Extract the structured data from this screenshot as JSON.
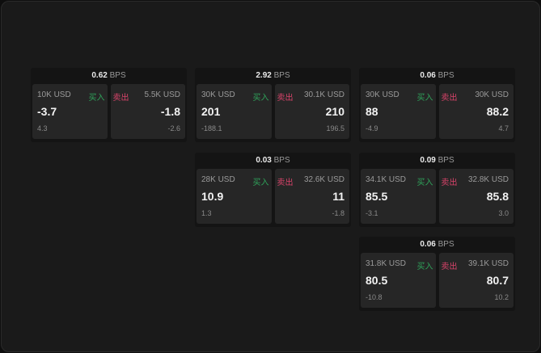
{
  "unit": "BPS",
  "buy_label": "买入",
  "sell_label": "卖出",
  "colors": {
    "buy": "#2fa35a",
    "sell": "#d9436a"
  },
  "cards": [
    {
      "spread": "0.62",
      "bid": {
        "size": "10K USD",
        "price": "-3.7",
        "change": "4.3"
      },
      "ask": {
        "size": "5.5K USD",
        "price": "-1.8",
        "change": "-2.6"
      }
    },
    {
      "spread": "2.92",
      "bid": {
        "size": "30K USD",
        "price": "201",
        "change": "-188.1"
      },
      "ask": {
        "size": "30.1K USD",
        "price": "210",
        "change": "196.5"
      }
    },
    {
      "spread": "0.06",
      "bid": {
        "size": "30K USD",
        "price": "88",
        "change": "-4.9"
      },
      "ask": {
        "size": "30K USD",
        "price": "88.2",
        "change": "4.7"
      }
    },
    {
      "spread": "0.03",
      "bid": {
        "size": "28K USD",
        "price": "10.9",
        "change": "1.3"
      },
      "ask": {
        "size": "32.6K USD",
        "price": "11",
        "change": "-1.8"
      }
    },
    {
      "spread": "0.09",
      "bid": {
        "size": "34.1K USD",
        "price": "85.5",
        "change": "-3.1"
      },
      "ask": {
        "size": "32.8K USD",
        "price": "85.8",
        "change": "3.0"
      }
    },
    {
      "spread": "0.06",
      "bid": {
        "size": "31.8K USD",
        "price": "80.5",
        "change": "-10.8"
      },
      "ask": {
        "size": "39.1K USD",
        "price": "80.7",
        "change": "10.2"
      }
    }
  ]
}
